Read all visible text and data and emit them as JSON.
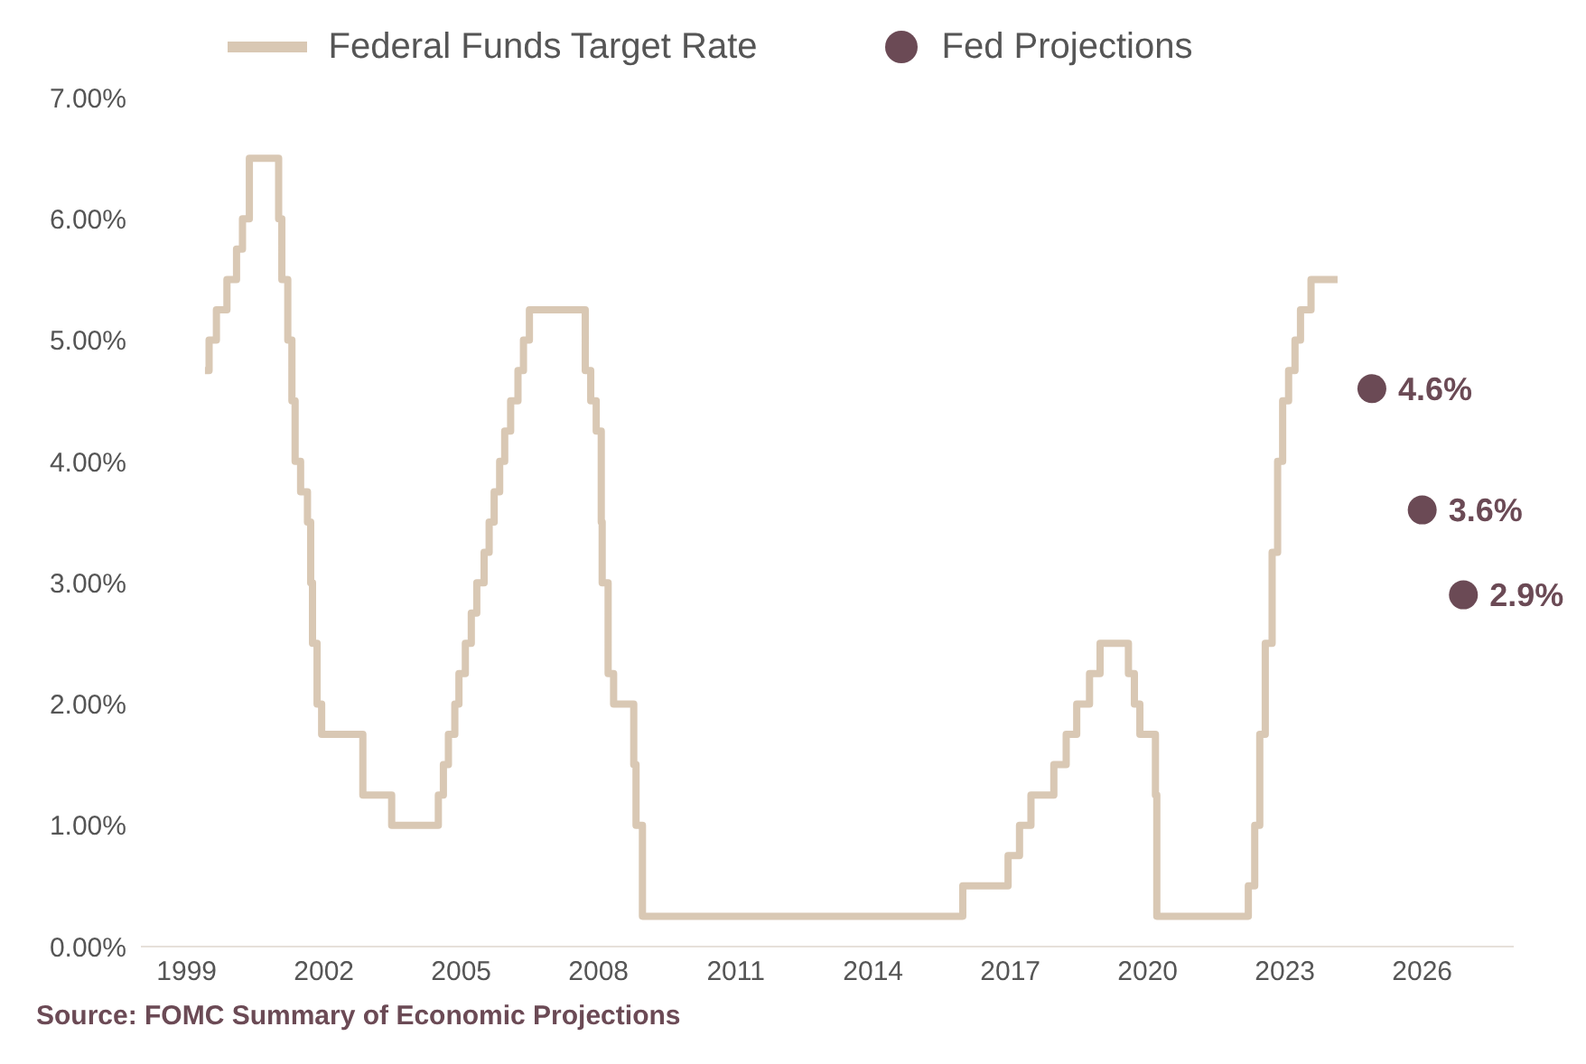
{
  "chart_data": {
    "type": "step",
    "xlim": [
      1998,
      2028
    ],
    "xticks": [
      1999,
      2002,
      2005,
      2008,
      2011,
      2014,
      2017,
      2020,
      2023,
      2026
    ],
    "ylim": [
      0,
      7
    ],
    "yticks": [
      {
        "value": 0,
        "label": "0.00%"
      },
      {
        "value": 1,
        "label": "1.00%"
      },
      {
        "value": 2,
        "label": "2.00%"
      },
      {
        "value": 3,
        "label": "3.00%"
      },
      {
        "value": 4,
        "label": "4.00%"
      },
      {
        "value": 5,
        "label": "5.00%"
      },
      {
        "value": 6,
        "label": "6.00%"
      },
      {
        "value": 7,
        "label": "7.00%"
      }
    ],
    "grid": false,
    "legend": "top",
    "annotations": [
      "Source: FOMC Summary of Economic Projections"
    ],
    "series": [
      {
        "name": "Federal Funds Target Rate",
        "color": "#d9c8b4",
        "x": [
          1999.4,
          1999.49,
          1999.65,
          1999.88,
          2000.09,
          2000.22,
          2000.37,
          2001.01,
          2001.08,
          2001.21,
          2001.3,
          2001.37,
          2001.49,
          2001.64,
          2001.71,
          2001.75,
          2001.85,
          2001.95,
          2002.85,
          2003.48,
          2004.5,
          2004.61,
          2004.72,
          2004.86,
          2004.95,
          2005.09,
          2005.22,
          2005.34,
          2005.5,
          2005.61,
          2005.72,
          2005.84,
          2005.95,
          2006.08,
          2006.24,
          2006.36,
          2006.49,
          2007.71,
          2007.83,
          2007.95,
          2008.06,
          2008.08,
          2008.21,
          2008.33,
          2008.77,
          2008.82,
          2008.96,
          2015.96,
          2016.95,
          2017.2,
          2017.45,
          2017.95,
          2018.22,
          2018.45,
          2018.73,
          2018.96,
          2019.58,
          2019.71,
          2019.83,
          2020.17,
          2020.2,
          2022.2,
          2022.34,
          2022.45,
          2022.57,
          2022.72,
          2022.84,
          2022.95,
          2023.08,
          2023.22,
          2023.34,
          2023.57,
          2024.15
        ],
        "values": [
          4.75,
          5.0,
          5.25,
          5.5,
          5.75,
          6.0,
          6.5,
          6.0,
          5.5,
          5.0,
          4.5,
          4.0,
          3.75,
          3.5,
          3.0,
          2.5,
          2.0,
          1.75,
          1.25,
          1.0,
          1.25,
          1.5,
          1.75,
          2.0,
          2.25,
          2.5,
          2.75,
          3.0,
          3.25,
          3.5,
          3.75,
          4.0,
          4.25,
          4.5,
          4.75,
          5.0,
          5.25,
          4.75,
          4.5,
          4.25,
          3.5,
          3.0,
          2.25,
          2.0,
          1.5,
          1.0,
          0.25,
          0.5,
          0.75,
          1.0,
          1.25,
          1.5,
          1.75,
          2.0,
          2.25,
          2.5,
          2.25,
          2.0,
          1.75,
          1.25,
          0.25,
          0.5,
          1.0,
          1.75,
          2.5,
          3.25,
          4.0,
          4.5,
          4.75,
          5.0,
          5.25,
          5.5,
          5.5
        ]
      },
      {
        "name": "Fed Projections",
        "type": "scatter",
        "marker": "circle",
        "color": "#6b4a55",
        "x": [
          2024.9,
          2026.0,
          2026.9
        ],
        "values": [
          4.6,
          3.6,
          2.9
        ],
        "value_labels": [
          "4.6%",
          "3.6%",
          "2.9%"
        ]
      }
    ]
  }
}
